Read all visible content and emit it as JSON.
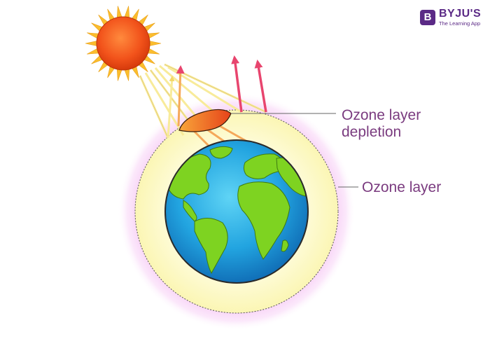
{
  "brand": {
    "badge_letter": "B",
    "name": "BYJU'S",
    "tagline": "The Learning App"
  },
  "labels": {
    "depletion_line1": "Ozone layer",
    "depletion_line2": "depletion",
    "ozone_layer": "Ozone layer"
  },
  "colors": {
    "brand": "#5b2a86",
    "label_text": "#7a3b7f",
    "ocean": "#1fa2de",
    "land": "#7ed321",
    "ozone_fill": "#fdfbd2",
    "ozone_glow": "#f3b6f0",
    "sun_core": "#f04a12",
    "sun_rays": "#fbbd2d",
    "incoming_rays": "#f5e27a",
    "reflected_rays": "#e8456e",
    "hole": "#f2541b"
  }
}
